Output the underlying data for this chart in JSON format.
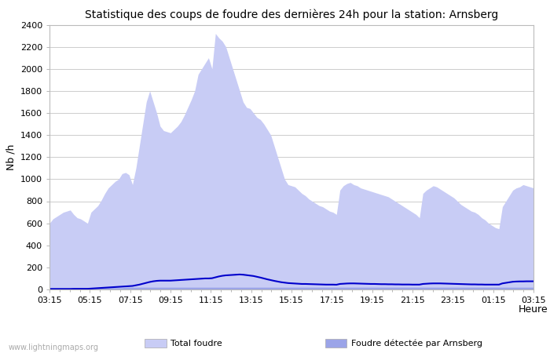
{
  "title": "Statistique des coups de foudre des dernières 24h pour la station: Arnsberg",
  "xlabel": "Heure",
  "ylabel": "Nb /h",
  "ylim": [
    0,
    2400
  ],
  "yticks": [
    0,
    200,
    400,
    600,
    800,
    1000,
    1200,
    1400,
    1600,
    1800,
    2000,
    2200,
    2400
  ],
  "x_labels": [
    "03:15",
    "05:15",
    "07:15",
    "09:15",
    "11:15",
    "13:15",
    "15:15",
    "17:15",
    "19:15",
    "21:15",
    "23:15",
    "01:15",
    "03:15"
  ],
  "total_foudre_color": "#c8ccf5",
  "arnsberg_color": "#9ba4e8",
  "moyenne_color": "#0000cc",
  "background_color": "#ffffff",
  "grid_color": "#cccccc",
  "watermark": "www.lightningmaps.org",
  "total_foudre": [
    600,
    640,
    660,
    680,
    700,
    710,
    720,
    680,
    650,
    640,
    620,
    600,
    700,
    730,
    760,
    810,
    870,
    920,
    950,
    980,
    1000,
    1050,
    1060,
    1040,
    950,
    1100,
    1300,
    1500,
    1700,
    1800,
    1700,
    1600,
    1480,
    1440,
    1430,
    1420,
    1450,
    1480,
    1520,
    1580,
    1650,
    1720,
    1800,
    1950,
    2000,
    2050,
    2100,
    2000,
    2320,
    2280,
    2250,
    2200,
    2100,
    2000,
    1900,
    1800,
    1700,
    1650,
    1640,
    1600,
    1560,
    1540,
    1500,
    1450,
    1400,
    1300,
    1200,
    1100,
    1000,
    950,
    940,
    930,
    900,
    870,
    850,
    820,
    800,
    780,
    760,
    750,
    730,
    710,
    700,
    680,
    900,
    940,
    960,
    970,
    950,
    940,
    920,
    910,
    900,
    890,
    880,
    870,
    860,
    850,
    840,
    820,
    800,
    780,
    760,
    740,
    720,
    700,
    680,
    650,
    870,
    900,
    920,
    940,
    930,
    910,
    890,
    870,
    850,
    830,
    800,
    770,
    750,
    730,
    710,
    700,
    680,
    650,
    630,
    600,
    580,
    560,
    550,
    750,
    800,
    850,
    900,
    920,
    930,
    950,
    940,
    930,
    920
  ],
  "arnsberg": [
    10,
    10,
    10,
    10,
    10,
    10,
    10,
    10,
    10,
    10,
    10,
    10,
    15,
    15,
    15,
    15,
    15,
    15,
    15,
    15,
    15,
    15,
    20,
    20,
    20,
    20,
    20,
    20,
    20,
    20,
    20,
    20,
    20,
    20,
    20,
    20,
    20,
    20,
    20,
    20,
    20,
    20,
    20,
    20,
    20,
    20,
    20,
    20,
    20,
    20,
    20,
    20,
    20,
    20,
    20,
    20,
    20,
    20,
    20,
    20,
    20,
    20,
    20,
    20,
    20,
    20,
    20,
    20,
    20,
    20,
    20,
    20,
    20,
    20,
    20,
    20,
    20,
    20,
    20,
    20,
    20,
    20,
    20,
    20,
    20,
    20,
    20,
    20,
    20,
    20,
    20,
    20,
    20,
    20,
    20,
    20,
    20,
    20,
    20,
    20,
    20,
    20,
    20,
    20,
    20,
    20,
    20,
    20,
    20,
    20,
    20,
    20,
    20,
    20,
    20,
    20,
    20,
    20,
    20,
    20,
    20,
    20,
    20,
    20,
    20,
    20,
    20,
    20,
    20,
    20,
    20,
    20,
    20,
    20,
    20,
    20,
    20,
    20,
    20,
    20,
    20
  ],
  "moyenne": [
    5,
    5,
    5,
    5,
    5,
    5,
    5,
    6,
    6,
    6,
    6,
    6,
    8,
    10,
    12,
    14,
    16,
    18,
    20,
    22,
    24,
    26,
    28,
    30,
    32,
    38,
    44,
    52,
    60,
    68,
    74,
    78,
    80,
    80,
    80,
    80,
    82,
    84,
    86,
    88,
    90,
    92,
    94,
    96,
    98,
    100,
    100,
    102,
    110,
    118,
    124,
    128,
    130,
    132,
    134,
    136,
    134,
    130,
    126,
    122,
    115,
    108,
    100,
    92,
    85,
    78,
    72,
    66,
    62,
    58,
    56,
    54,
    52,
    50,
    50,
    49,
    48,
    47,
    46,
    45,
    44,
    44,
    44,
    43,
    50,
    52,
    54,
    55,
    55,
    54,
    53,
    52,
    51,
    50,
    50,
    49,
    48,
    48,
    47,
    47,
    46,
    46,
    45,
    45,
    45,
    44,
    44,
    44,
    50,
    52,
    54,
    55,
    55,
    55,
    54,
    53,
    52,
    51,
    50,
    49,
    48,
    47,
    46,
    46,
    45,
    45,
    44,
    44,
    44,
    44,
    44,
    55,
    60,
    65,
    70,
    72,
    73,
    73,
    74,
    74,
    74
  ]
}
